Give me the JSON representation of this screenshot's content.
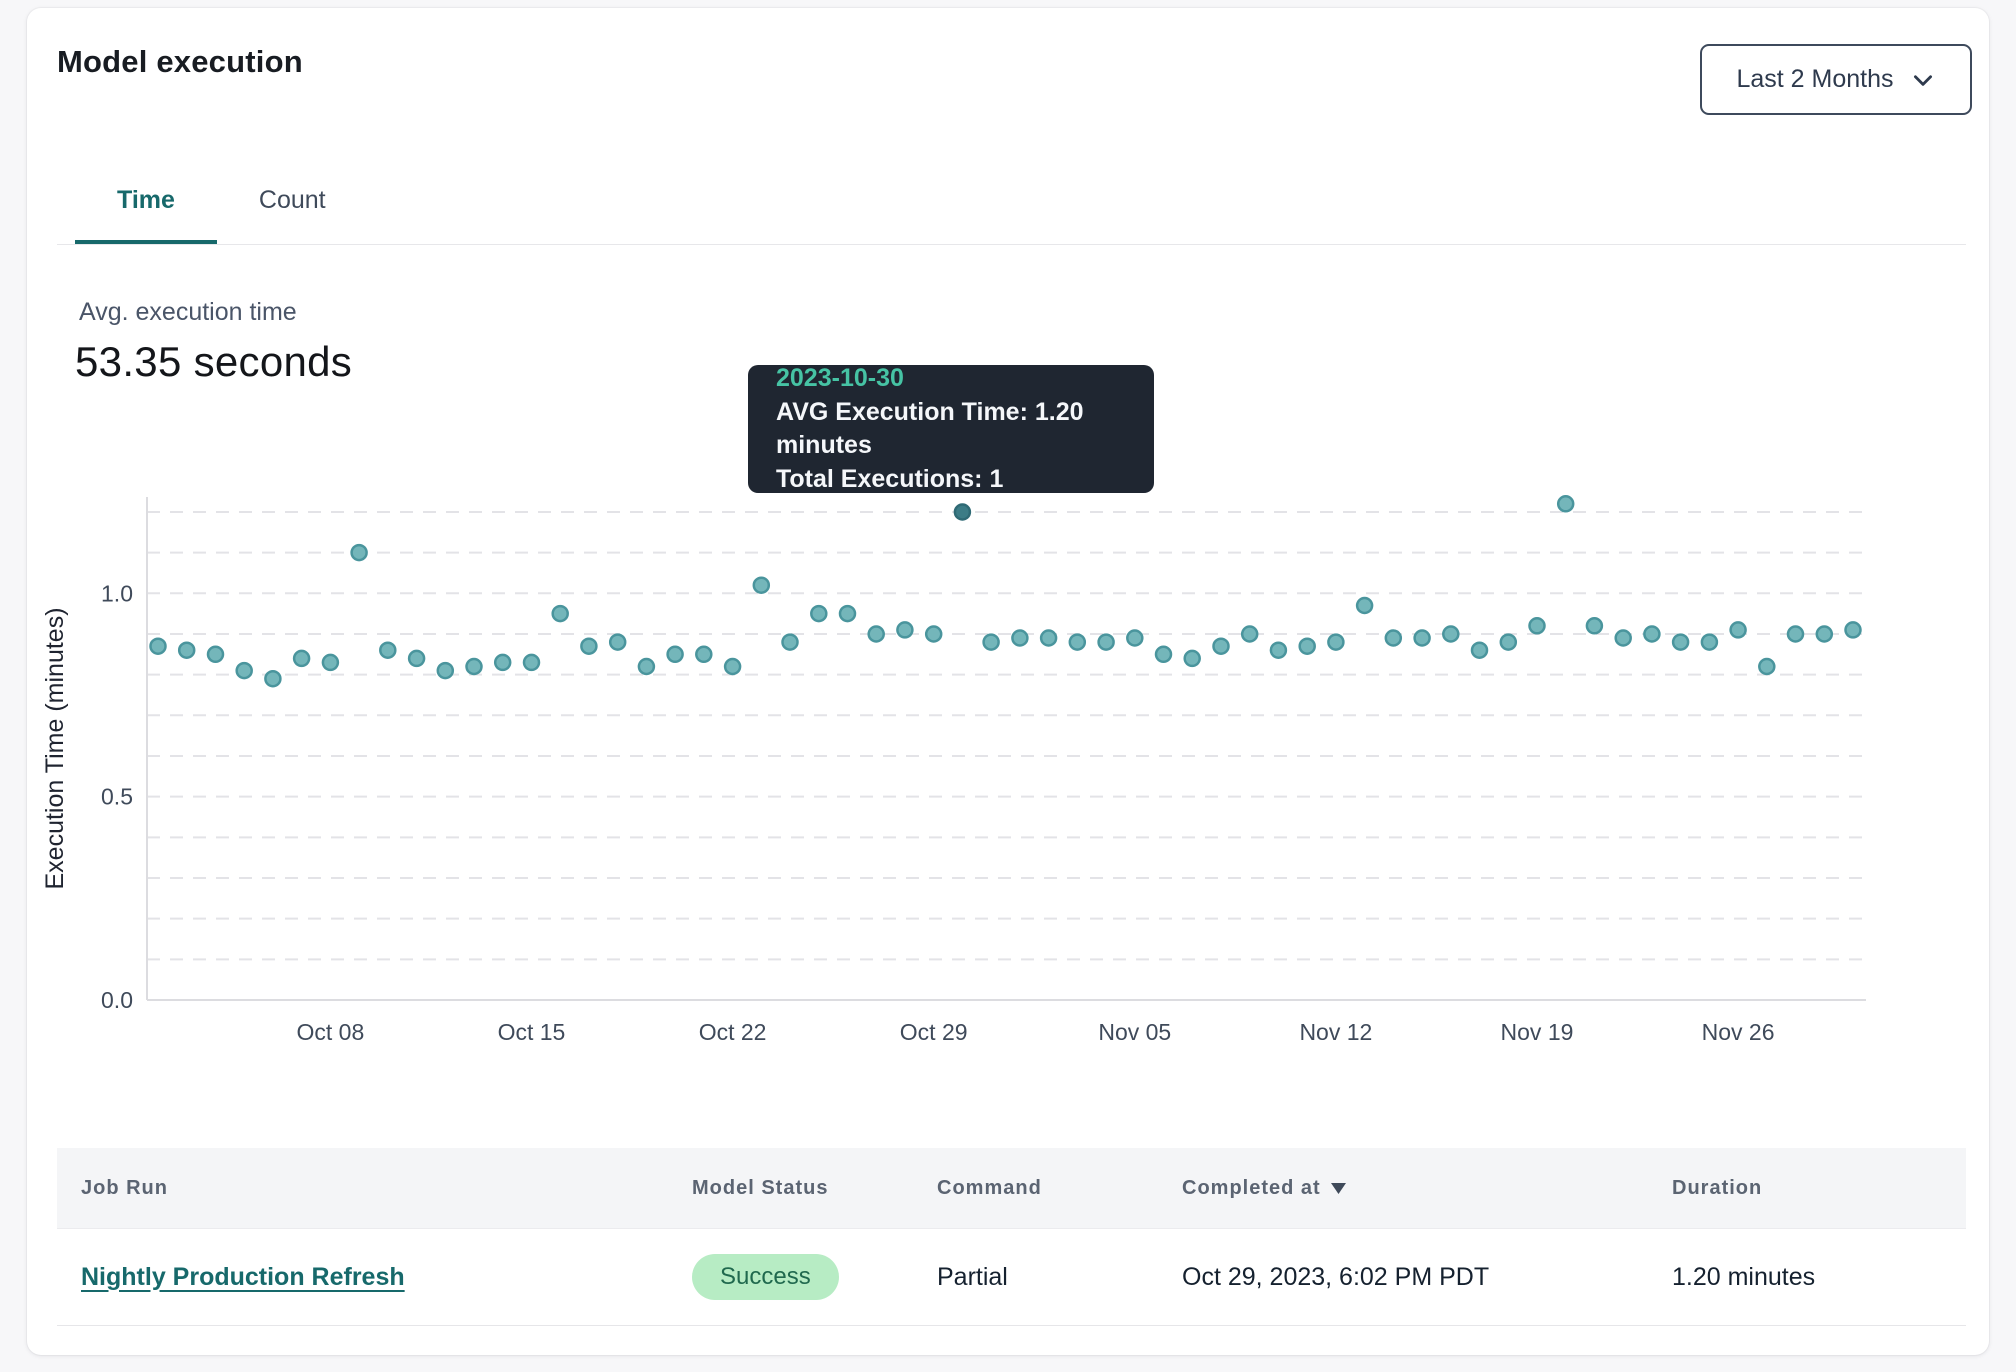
{
  "page": {
    "title": "Model execution"
  },
  "filter": {
    "label": "Last 2 Months"
  },
  "tabs": [
    {
      "label": "Time",
      "active": true
    },
    {
      "label": "Count",
      "active": false
    }
  ],
  "summary": {
    "label": "Avg. execution time",
    "value": "53.35 seconds"
  },
  "tooltip": {
    "date": "2023-10-30",
    "avg_line": "AVG Execution Time: 1.20 minutes",
    "total_line": "Total Executions: 1"
  },
  "chart_data": {
    "type": "scatter",
    "ylabel": "Execution Time (minutes)",
    "ylim": [
      0,
      1.25
    ],
    "yticks": [
      0.0,
      0.5,
      1.0
    ],
    "grid": "horizontal-dashed",
    "gridline_step": 0.1,
    "x_ticks": [
      {
        "label": "Oct 08",
        "index": 6
      },
      {
        "label": "Oct 15",
        "index": 13
      },
      {
        "label": "Oct 22",
        "index": 20
      },
      {
        "label": "Oct 29",
        "index": 27
      },
      {
        "label": "Nov 05",
        "index": 34
      },
      {
        "label": "Nov 12",
        "index": 41
      },
      {
        "label": "Nov 19",
        "index": 48
      },
      {
        "label": "Nov 26",
        "index": 55
      }
    ],
    "highlight_index": 28,
    "highlighted_date": "2023-10-30",
    "series": [
      {
        "name": "AVG Execution Time (minutes)",
        "points": [
          [
            "2023-10-02",
            0.87
          ],
          [
            "2023-10-03",
            0.86
          ],
          [
            "2023-10-04",
            0.85
          ],
          [
            "2023-10-05",
            0.81
          ],
          [
            "2023-10-06",
            0.79
          ],
          [
            "2023-10-07",
            0.84
          ],
          [
            "2023-10-08",
            0.83
          ],
          [
            "2023-10-09",
            1.1
          ],
          [
            "2023-10-10",
            0.86
          ],
          [
            "2023-10-11",
            0.84
          ],
          [
            "2023-10-12",
            0.81
          ],
          [
            "2023-10-13",
            0.82
          ],
          [
            "2023-10-14",
            0.83
          ],
          [
            "2023-10-15",
            0.83
          ],
          [
            "2023-10-16",
            0.95
          ],
          [
            "2023-10-17",
            0.87
          ],
          [
            "2023-10-18",
            0.88
          ],
          [
            "2023-10-19",
            0.82
          ],
          [
            "2023-10-20",
            0.85
          ],
          [
            "2023-10-21",
            0.85
          ],
          [
            "2023-10-22",
            0.82
          ],
          [
            "2023-10-23",
            1.02
          ],
          [
            "2023-10-24",
            0.88
          ],
          [
            "2023-10-25",
            0.95
          ],
          [
            "2023-10-26",
            0.95
          ],
          [
            "2023-10-27",
            0.9
          ],
          [
            "2023-10-28",
            0.91
          ],
          [
            "2023-10-29",
            0.9
          ],
          [
            "2023-10-30",
            1.2
          ],
          [
            "2023-10-31",
            0.88
          ],
          [
            "2023-11-01",
            0.89
          ],
          [
            "2023-11-02",
            0.89
          ],
          [
            "2023-11-03",
            0.88
          ],
          [
            "2023-11-04",
            0.88
          ],
          [
            "2023-11-05",
            0.89
          ],
          [
            "2023-11-06",
            0.85
          ],
          [
            "2023-11-07",
            0.84
          ],
          [
            "2023-11-08",
            0.87
          ],
          [
            "2023-11-09",
            0.9
          ],
          [
            "2023-11-10",
            0.86
          ],
          [
            "2023-11-11",
            0.87
          ],
          [
            "2023-11-12",
            0.88
          ],
          [
            "2023-11-13",
            0.97
          ],
          [
            "2023-11-14",
            0.89
          ],
          [
            "2023-11-15",
            0.89
          ],
          [
            "2023-11-16",
            0.9
          ],
          [
            "2023-11-17",
            0.86
          ],
          [
            "2023-11-18",
            0.88
          ],
          [
            "2023-11-19",
            0.92
          ],
          [
            "2023-11-20",
            1.22
          ],
          [
            "2023-11-21",
            0.92
          ],
          [
            "2023-11-22",
            0.89
          ],
          [
            "2023-11-23",
            0.9
          ],
          [
            "2023-11-24",
            0.88
          ],
          [
            "2023-11-25",
            0.88
          ],
          [
            "2023-11-26",
            0.91
          ],
          [
            "2023-11-27",
            0.82
          ],
          [
            "2023-11-28",
            0.9
          ],
          [
            "2023-11-29",
            0.9
          ],
          [
            "2023-11-30",
            0.91
          ]
        ]
      }
    ]
  },
  "table": {
    "columns": [
      "Job Run",
      "Model Status",
      "Command",
      "Completed at",
      "Duration"
    ],
    "sorted_by": "Completed at",
    "sort_direction": "desc",
    "rows": [
      {
        "job_run": "Nightly Production Refresh",
        "model_status": "Success",
        "command": "Partial",
        "completed_at": "Oct 29, 2023, 6:02 PM PDT",
        "duration": "1.20 minutes"
      }
    ]
  },
  "colors": {
    "accent_teal": "#17696b",
    "point_fill": "#74b6ba",
    "point_stroke": "#4a959d",
    "point_highlight_fill": "#3c7c86",
    "point_highlight_stroke": "#2f6a75",
    "tooltip_bg": "#1f2631",
    "tooltip_date": "#46c3a4",
    "badge_bg": "#b7ecc4",
    "badge_text": "#20694e",
    "grid_line": "#e3e3e7",
    "axis_line": "#dcdce0",
    "tick_text": "#3f4a5a"
  }
}
